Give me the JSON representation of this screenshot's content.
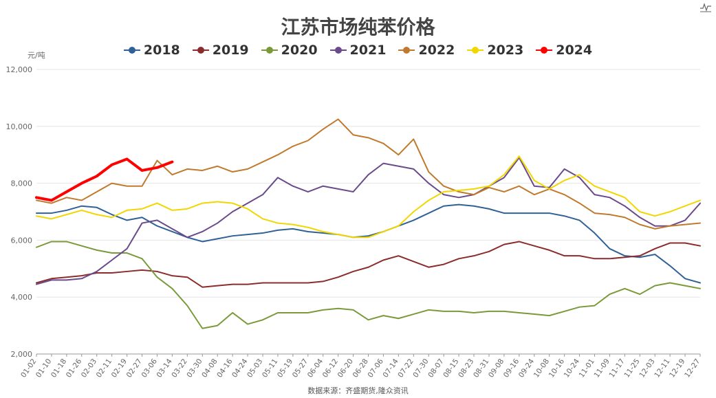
{
  "title": "江苏市场纯苯价格",
  "unit": "元/吨",
  "source": "数据来源：齐盛期货,隆众资讯",
  "toolbox_icon": "line-chart-icon",
  "chart_data": {
    "type": "line",
    "title": "江苏市场纯苯价格",
    "ylabel": "元/吨",
    "ylim": [
      2000,
      12000
    ],
    "yticks": [
      "2,000",
      "4,000",
      "6,000",
      "8,000",
      "10,000",
      "12,000"
    ],
    "grid": true,
    "legend_position": "top-center",
    "xticks": [
      "01-02",
      "01-10",
      "01-18",
      "01-26",
      "02-03",
      "02-11",
      "02-19",
      "02-27",
      "03-06",
      "03-14",
      "03-22",
      "03-30",
      "04-08",
      "04-16",
      "04-24",
      "05-03",
      "05-11",
      "05-19",
      "05-27",
      "06-04",
      "06-12",
      "06-20",
      "06-28",
      "07-06",
      "07-14",
      "07-22",
      "07-30",
      "08-07",
      "08-15",
      "08-23",
      "08-31",
      "09-08",
      "09-16",
      "09-24",
      "10-08",
      "10-16",
      "10-24",
      "11-01",
      "11-09",
      "11-17",
      "11-25",
      "12-03",
      "12-11",
      "12-19",
      "12-27"
    ],
    "series": [
      {
        "name": "2018",
        "color": "#2f6196",
        "width": 2,
        "x": [
          "01-02",
          "01-10",
          "01-18",
          "01-26",
          "02-03",
          "02-11",
          "02-19",
          "02-27",
          "03-06",
          "03-14",
          "03-22",
          "03-30",
          "04-08",
          "04-16",
          "04-24",
          "05-03",
          "05-11",
          "05-19",
          "05-27",
          "06-04",
          "06-12",
          "06-20",
          "06-28",
          "07-06",
          "07-14",
          "07-22",
          "07-30",
          "08-07",
          "08-15",
          "08-23",
          "08-31",
          "09-08",
          "09-16",
          "09-24",
          "10-08",
          "10-16",
          "10-24",
          "11-01",
          "11-09",
          "11-17",
          "11-25",
          "12-03",
          "12-11",
          "12-19",
          "12-27"
        ],
        "y": [
          6950,
          6950,
          7050,
          7200,
          7150,
          6900,
          6700,
          6800,
          6500,
          6300,
          6100,
          5950,
          6050,
          6150,
          6200,
          6250,
          6350,
          6400,
          6300,
          6250,
          6200,
          6100,
          6150,
          6300,
          6500,
          6700,
          6950,
          7200,
          7250,
          7200,
          7100,
          6950,
          6950,
          6950,
          6950,
          6850,
          6700,
          6250,
          5700,
          5450,
          5400,
          5500,
          5100,
          4650,
          4500
        ]
      },
      {
        "name": "2019",
        "color": "#8b2c2c",
        "width": 2,
        "x": [
          "01-02",
          "01-10",
          "01-18",
          "01-26",
          "02-03",
          "02-11",
          "02-19",
          "02-27",
          "03-06",
          "03-14",
          "03-22",
          "03-30",
          "04-08",
          "04-16",
          "04-24",
          "05-03",
          "05-11",
          "05-19",
          "05-27",
          "06-04",
          "06-12",
          "06-20",
          "06-28",
          "07-06",
          "07-14",
          "07-22",
          "07-30",
          "08-07",
          "08-15",
          "08-23",
          "08-31",
          "09-08",
          "09-16",
          "09-24",
          "10-08",
          "10-16",
          "10-24",
          "11-01",
          "11-09",
          "11-17",
          "11-25",
          "12-03",
          "12-11",
          "12-19",
          "12-27"
        ],
        "y": [
          4500,
          4650,
          4700,
          4750,
          4850,
          4850,
          4900,
          4950,
          4900,
          4750,
          4700,
          4350,
          4400,
          4450,
          4450,
          4500,
          4500,
          4500,
          4500,
          4550,
          4700,
          4900,
          5050,
          5300,
          5450,
          5250,
          5050,
          5150,
          5350,
          5450,
          5600,
          5850,
          5950,
          5800,
          5650,
          5450,
          5450,
          5350,
          5350,
          5400,
          5450,
          5700,
          5900,
          5900,
          5800
        ]
      },
      {
        "name": "2020",
        "color": "#7a9a3a",
        "width": 2,
        "x": [
          "01-02",
          "01-10",
          "01-18",
          "01-26",
          "02-03",
          "02-11",
          "02-19",
          "02-27",
          "03-06",
          "03-14",
          "03-22",
          "03-30",
          "04-08",
          "04-16",
          "04-24",
          "05-03",
          "05-11",
          "05-19",
          "05-27",
          "06-04",
          "06-12",
          "06-20",
          "06-28",
          "07-06",
          "07-14",
          "07-22",
          "07-30",
          "08-07",
          "08-15",
          "08-23",
          "08-31",
          "09-08",
          "09-16",
          "09-24",
          "10-08",
          "10-16",
          "10-24",
          "11-01",
          "11-09",
          "11-17",
          "11-25",
          "12-03",
          "12-11",
          "12-19",
          "12-27"
        ],
        "y": [
          5750,
          5950,
          5950,
          5800,
          5650,
          5550,
          5550,
          5350,
          4700,
          4300,
          3700,
          2900,
          3000,
          3450,
          3050,
          3200,
          3450,
          3450,
          3450,
          3550,
          3600,
          3550,
          3200,
          3350,
          3250,
          3400,
          3550,
          3500,
          3500,
          3450,
          3500,
          3500,
          3450,
          3400,
          3350,
          3500,
          3650,
          3700,
          4100,
          4300,
          4100,
          4400,
          4500,
          4400,
          4300
        ]
      },
      {
        "name": "2021",
        "color": "#6a4a8a",
        "width": 2,
        "x": [
          "01-02",
          "01-10",
          "01-18",
          "01-26",
          "02-03",
          "02-11",
          "02-19",
          "02-27",
          "03-06",
          "03-14",
          "03-22",
          "03-30",
          "04-08",
          "04-16",
          "04-24",
          "05-03",
          "05-11",
          "05-19",
          "05-27",
          "06-04",
          "06-12",
          "06-20",
          "06-28",
          "07-06",
          "07-14",
          "07-22",
          "07-30",
          "08-07",
          "08-15",
          "08-23",
          "08-31",
          "09-08",
          "09-16",
          "09-24",
          "10-08",
          "10-16",
          "10-24",
          "11-01",
          "11-09",
          "11-17",
          "11-25",
          "12-03",
          "12-11",
          "12-19",
          "12-27"
        ],
        "y": [
          4450,
          4600,
          4600,
          4650,
          4900,
          5300,
          5700,
          6600,
          6700,
          6400,
          6100,
          6300,
          6600,
          7000,
          7300,
          7600,
          8200,
          7900,
          7700,
          7900,
          7800,
          7700,
          8300,
          8700,
          8600,
          8500,
          8000,
          7600,
          7500,
          7600,
          7900,
          8200,
          8900,
          7900,
          7850,
          8500,
          8200,
          7600,
          7500,
          7200,
          6800,
          6500,
          6500,
          6700,
          7300
        ]
      },
      {
        "name": "2022",
        "color": "#c0792d",
        "width": 2,
        "x": [
          "01-02",
          "01-10",
          "01-18",
          "01-26",
          "02-03",
          "02-11",
          "02-19",
          "02-27",
          "03-06",
          "03-14",
          "03-22",
          "03-30",
          "04-08",
          "04-16",
          "04-24",
          "05-03",
          "05-11",
          "05-19",
          "05-27",
          "06-04",
          "06-12",
          "06-20",
          "06-28",
          "07-06",
          "07-14",
          "07-22",
          "07-30",
          "08-07",
          "08-15",
          "08-23",
          "08-31",
          "09-08",
          "09-16",
          "09-24",
          "10-08",
          "10-16",
          "10-24",
          "11-01",
          "11-09",
          "11-17",
          "11-25",
          "12-03",
          "12-11",
          "12-19",
          "12-27"
        ],
        "y": [
          7400,
          7300,
          7500,
          7400,
          7700,
          8000,
          7900,
          7900,
          8800,
          8300,
          8500,
          8450,
          8600,
          8400,
          8500,
          8750,
          9000,
          9300,
          9500,
          9900,
          10250,
          9700,
          9600,
          9400,
          9000,
          9550,
          8400,
          7900,
          7700,
          7600,
          7850,
          7700,
          7900,
          7600,
          7800,
          7600,
          7300,
          6950,
          6900,
          6800,
          6550,
          6400,
          6500,
          6550,
          6600
        ]
      },
      {
        "name": "2023",
        "color": "#f2d600",
        "width": 2,
        "x": [
          "01-02",
          "01-10",
          "01-18",
          "01-26",
          "02-03",
          "02-11",
          "02-19",
          "02-27",
          "03-06",
          "03-14",
          "03-22",
          "03-30",
          "04-08",
          "04-16",
          "04-24",
          "05-03",
          "05-11",
          "05-19",
          "05-27",
          "06-04",
          "06-12",
          "06-20",
          "06-28",
          "07-06",
          "07-14",
          "07-22",
          "07-30",
          "08-07",
          "08-15",
          "08-23",
          "08-31",
          "09-08",
          "09-16",
          "09-24",
          "10-08",
          "10-16",
          "10-24",
          "11-01",
          "11-09",
          "11-17",
          "11-25",
          "12-03",
          "12-11",
          "12-19",
          "12-27"
        ],
        "y": [
          6850,
          6750,
          6900,
          7050,
          6900,
          6800,
          7050,
          7100,
          7300,
          7050,
          7100,
          7300,
          7350,
          7300,
          7100,
          6750,
          6600,
          6550,
          6450,
          6300,
          6200,
          6100,
          6100,
          6300,
          6500,
          7000,
          7400,
          7700,
          7750,
          7800,
          7900,
          8300,
          8950,
          8100,
          7800,
          8100,
          8300,
          7900,
          7700,
          7500,
          7000,
          6850,
          7000,
          7200,
          7400
        ]
      },
      {
        "name": "2024",
        "color": "#ff0000",
        "width": 4,
        "x": [
          "01-02",
          "01-10",
          "01-18",
          "01-26",
          "02-03",
          "02-11",
          "02-19",
          "02-27",
          "03-06",
          "03-14"
        ],
        "y": [
          7500,
          7400,
          7700,
          8000,
          8250,
          8650,
          8850,
          8450,
          8550,
          8750
        ]
      }
    ]
  }
}
